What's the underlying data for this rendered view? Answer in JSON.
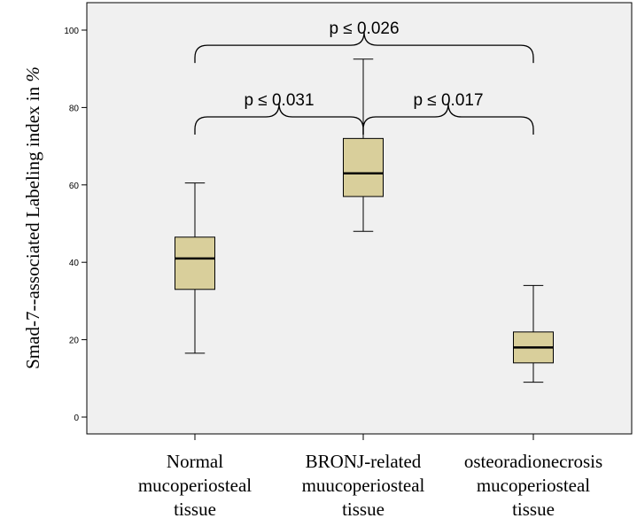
{
  "chart_data": {
    "type": "boxplot",
    "ylabel_main": "Smad-7--associated Labeling index in ",
    "ylabel_unit": "%",
    "ylim": [
      -3,
      100
    ],
    "yticks": [
      0,
      20,
      40,
      60,
      80,
      100
    ],
    "grid": false,
    "colors": {
      "plot_bg": "#f0f0f0",
      "box_fill": "#d9cf9b",
      "line": "#000000"
    },
    "categories": [
      {
        "lines": [
          "Normal",
          "mucoperiosteal",
          "tissue"
        ]
      },
      {
        "lines": [
          "BRONJ-related",
          "muucoperiosteal",
          "tissue"
        ]
      },
      {
        "lines": [
          "osteoradionecrosis",
          "mucoperiosteal",
          "tissue"
        ]
      }
    ],
    "boxes": [
      {
        "min": 16.5,
        "q1": 33,
        "median": 41,
        "q3": 46.5,
        "max": 60.5
      },
      {
        "min": 48,
        "q1": 57,
        "median": 63,
        "q3": 72,
        "max": 92.5
      },
      {
        "min": 9,
        "q1": 14,
        "median": 18,
        "q3": 22,
        "max": 34
      }
    ],
    "comparisons": [
      {
        "from": 0,
        "to": 1,
        "label": "p ≤ 0.031",
        "level": 73
      },
      {
        "from": 1,
        "to": 2,
        "label": "p ≤ 0.017",
        "level": 73
      },
      {
        "from": 0,
        "to": 2,
        "label": "p ≤ 0.026",
        "level": 91.5
      }
    ]
  }
}
